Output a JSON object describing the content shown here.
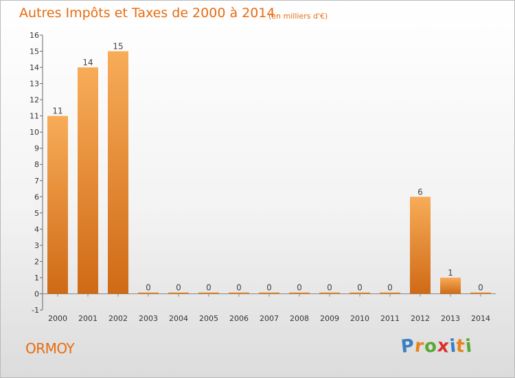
{
  "title": "Autres Impôts et Taxes de 2000 à 2014",
  "subtitle": "(en milliers d'€)",
  "town": "ORMOY",
  "logo": {
    "letters": [
      "P",
      "r",
      "o",
      "x",
      "i",
      "t",
      "i"
    ],
    "colors": [
      "#3a7fc4",
      "#e8831a",
      "#5aa832",
      "#d9302c",
      "#3a7fc4",
      "#e8831a",
      "#5aa832"
    ]
  },
  "colors": {
    "accent": "#e86b0e",
    "bar_light": "#f8ac58",
    "bar_dark": "#cf6a16"
  },
  "chart_data": {
    "type": "bar",
    "title": "Autres Impôts et Taxes de 2000 à 2014",
    "subtitle": "(en milliers d'€)",
    "categories": [
      "2000",
      "2001",
      "2002",
      "2003",
      "2004",
      "2005",
      "2006",
      "2007",
      "2008",
      "2009",
      "2010",
      "2011",
      "2012",
      "2013",
      "2014"
    ],
    "values": [
      11,
      14,
      15,
      0,
      0,
      0,
      0,
      0,
      0,
      0,
      0,
      0,
      6,
      1,
      0
    ],
    "data_labels": [
      "11",
      "14",
      "15",
      "0",
      "0",
      "0",
      "0",
      "0",
      "0",
      "0",
      "0",
      "0",
      "6",
      "1",
      "0"
    ],
    "yticks": [
      "-1",
      "0",
      "1",
      "2",
      "3",
      "4",
      "5",
      "6",
      "7",
      "8",
      "9",
      "10",
      "11",
      "12",
      "13",
      "14",
      "15",
      "16"
    ],
    "ylim": [
      -1,
      16
    ],
    "xlabel": "",
    "ylabel": "",
    "grid": false,
    "legend": "none"
  }
}
